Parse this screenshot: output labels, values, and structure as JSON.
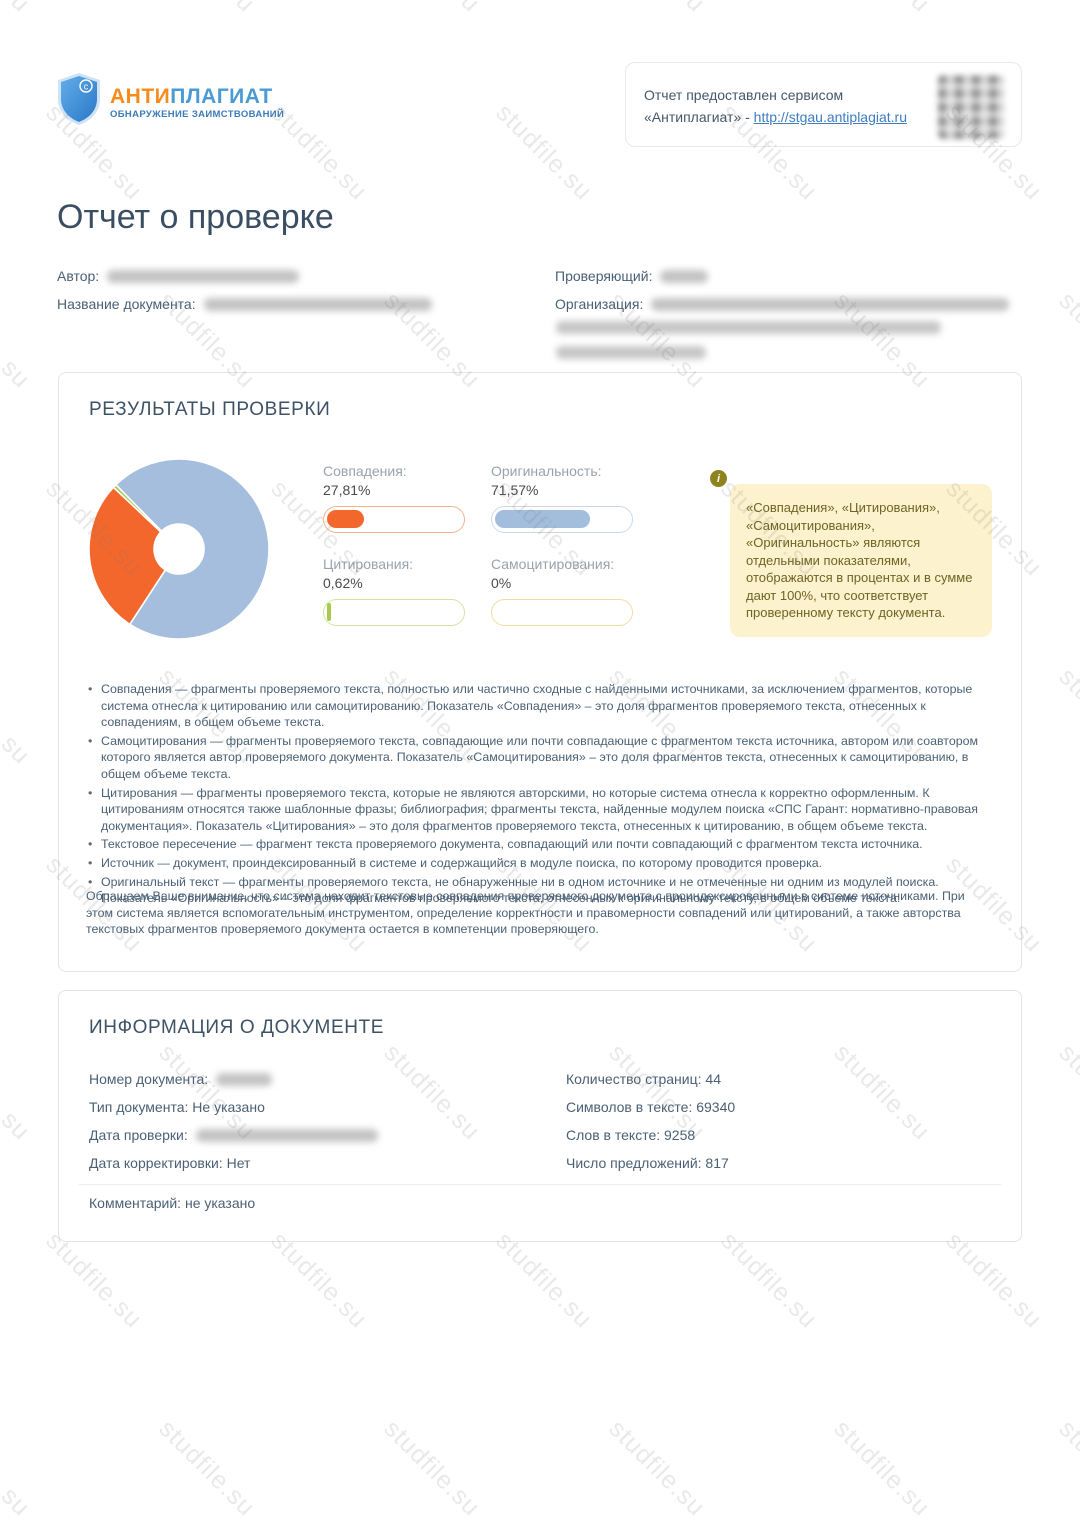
{
  "page": {
    "watermark": "studfile.su"
  },
  "brand": {
    "name_part1": "АНТИ",
    "name_part2": "ПЛАГИАТ",
    "subtitle": "ОБНАРУЖЕНИЕ ЗАИМСТВОВАНИЙ",
    "color_orange": "#f68b1e",
    "color_blue": "#4a9bd5",
    "shield_icon": "shield-copyright-icon"
  },
  "header_box": {
    "line1": "Отчет предоставлен сервисом",
    "line2_prefix": "«Антиплагиат» - ",
    "link_text": "http://stgau.antiplagiat.ru",
    "qr_icon": "qr-code-blurred"
  },
  "title": "Отчет о проверке",
  "meta": {
    "author_label": "Автор:",
    "doc_name_label": "Название документа:",
    "reviewer_label": "Проверяющий:",
    "org_label": "Организация:"
  },
  "results": {
    "heading": "РЕЗУЛЬТАТЫ ПРОВЕРКИ",
    "metrics": [
      {
        "label": "Совпадения:",
        "value": "27,81%",
        "percent": 27.81,
        "fill": "#f3672d",
        "border": "#f7b28c"
      },
      {
        "label": "Оригинальность:",
        "value": "71,57%",
        "percent": 71.57,
        "fill": "#a3bedd",
        "border": "#cad9ea"
      },
      {
        "label": "Цитирования:",
        "value": "0,62%",
        "percent": 0.62,
        "fill": "#a9ca4c",
        "border": "#d6e2a3"
      },
      {
        "label": "Самоцитирования:",
        "value": "0%",
        "percent": 0,
        "fill": "#e8c878",
        "border": "#f0dda4"
      }
    ],
    "tooltip": {
      "icon": "info-icon",
      "text": "«Совпадения», «Цитирования», «Самоцитирования», «Оригинальность» являются отдельными показателями, отображаются в процентах и в сумме дают 100%, что соответствует проверенному тексту документа."
    }
  },
  "chart_data": {
    "type": "pie",
    "subtype": "donut",
    "title": "",
    "units": "%",
    "legend": "none",
    "start_angle_deg": 315.5,
    "inner_radius_ratio": 0.28,
    "segments": [
      {
        "label": "Оригинальность",
        "value": 71.57,
        "color": "#a5bedd"
      },
      {
        "label": "Совпадения",
        "value": 27.81,
        "color": "#f3672d"
      },
      {
        "label": "Цитирования",
        "value": 0.62,
        "color": "#a9ca4c"
      },
      {
        "label": "Самоцитирования",
        "value": 0,
        "color": "#e8c878"
      }
    ]
  },
  "definitions": [
    "Совпадения — фрагменты проверяемого текста, полностью или частично сходные с найденными источниками, за исключением фрагментов, которые система отнесла к цитированию или самоцитированию. Показатель «Совпадения» – это доля фрагментов проверяемого текста, отнесенных к совпадениям, в общем объеме текста.",
    "Самоцитирования — фрагменты проверяемого текста, совпадающие или почти совпадающие с фрагментом текста источника, автором или соавтором которого является автор проверяемого документа. Показатель «Самоцитирования» – это доля фрагментов текста, отнесенных к самоцитированию, в общем объеме текста.",
    "Цитирования — фрагменты проверяемого текста, которые не являются авторскими, но которые система отнесла к корректно оформленным. К цитированиям относятся также шаблонные фразы; библиография; фрагменты текста, найденные модулем поиска «СПС Гарант: нормативно-правовая документация». Показатель «Цитирования» – это доля фрагментов проверяемого текста, отнесенных к цитированию, в общем объеме текста.",
    "Текстовое пересечение — фрагмент текста проверяемого документа, совпадающий или почти совпадающий с фрагментом текста источника.",
    "Источник — документ, проиндексированный в системе и содержащийся в модуле поиска, по которому проводится проверка.",
    "Оригинальный текст — фрагменты проверяемого текста, не обнаруженные ни в одном источнике и не отмеченные ни одним из модулей поиска. Показатель «Оригинальность» – это доля фрагментов проверяемого текста, отнесенных к оригинальному тексту, в общем объеме текста."
  ],
  "notice": "Обращаем Ваше внимание, что система находит текстовые совпадения проверяемого документа с проиндексированными в системе источниками. При этом система является вспомогательным инструментом, определение корректности и правомерности совпадений или цитирований, а также авторства текстовых фрагментов проверяемого документа остается в компетенции проверяющего.",
  "doc_info": {
    "heading": "ИНФОРМАЦИЯ О ДОКУМЕНТЕ",
    "left": [
      {
        "label": "Номер документа:",
        "value": ""
      },
      {
        "label": "Тип документа:",
        "value": " Не указано"
      },
      {
        "label": "Дата проверки:",
        "value": ""
      },
      {
        "label": "Дата корректировки:",
        "value": " Нет"
      }
    ],
    "right": [
      "Количество страниц: 44",
      "Символов в тексте: 69340",
      "Слов в тексте: 9258",
      "Число предложений: 817"
    ],
    "comment": "Комментарий: не указано"
  }
}
